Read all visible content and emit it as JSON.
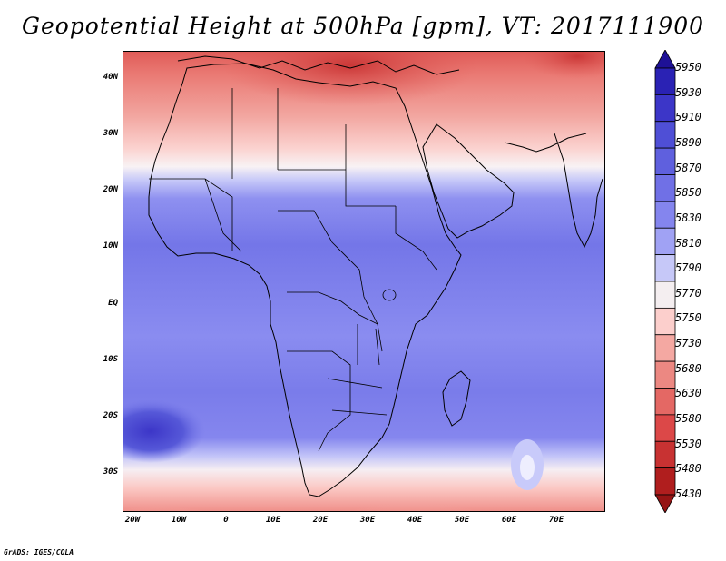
{
  "title": "Geopotential Height at 500hPa [gpm], VT: 2017111900",
  "credit": "GrADS: IGES/COLA",
  "map": {
    "region": "Africa",
    "lat_labels": [
      "40N",
      "30N",
      "20N",
      "10N",
      "EQ",
      "10S",
      "20S",
      "30S"
    ],
    "lon_labels": [
      "20W",
      "10W",
      "0",
      "10E",
      "20E",
      "30E",
      "40E",
      "50E",
      "60E",
      "70E"
    ]
  },
  "colorbar": {
    "levels": [
      "5950",
      "5930",
      "5910",
      "5890",
      "5870",
      "5850",
      "5830",
      "5810",
      "5790",
      "5770",
      "5750",
      "5730",
      "5680",
      "5630",
      "5580",
      "5530",
      "5480",
      "5430"
    ],
    "colors": [
      "#1e1196",
      "#2a22b4",
      "#3c36c8",
      "#4f4fd6",
      "#5f60de",
      "#7070e6",
      "#8485ee",
      "#a0a2f4",
      "#c6c8f8",
      "#f4eef0",
      "#fccfcc",
      "#f4a8a2",
      "#ec8882",
      "#e46864",
      "#dc4848",
      "#c83232",
      "#b01e1e",
      "#961414"
    ]
  }
}
